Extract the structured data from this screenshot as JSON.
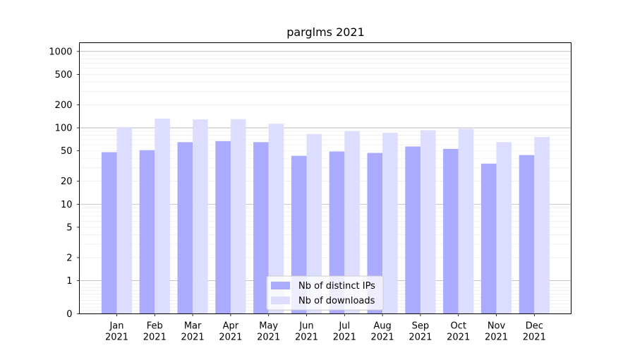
{
  "chart_data": {
    "type": "bar",
    "title": "parglms 2021",
    "xlabel": "",
    "ylabel": "",
    "y_scale": "symlog",
    "ylim": [
      0,
      1300
    ],
    "y_ticks": [
      0,
      1,
      2,
      5,
      10,
      20,
      50,
      100,
      200,
      500,
      1000
    ],
    "y_tick_labels": [
      "0",
      "1",
      "2",
      "5",
      "10",
      "20",
      "50",
      "100",
      "200",
      "500",
      "1000"
    ],
    "categories": [
      [
        "Jan",
        "2021"
      ],
      [
        "Feb",
        "2021"
      ],
      [
        "Mar",
        "2021"
      ],
      [
        "Apr",
        "2021"
      ],
      [
        "May",
        "2021"
      ],
      [
        "Jun",
        "2021"
      ],
      [
        "Jul",
        "2021"
      ],
      [
        "Aug",
        "2021"
      ],
      [
        "Sep",
        "2021"
      ],
      [
        "Oct",
        "2021"
      ],
      [
        "Nov",
        "2021"
      ],
      [
        "Dec",
        "2021"
      ]
    ],
    "series": [
      {
        "name": "Nb of distinct IPs",
        "color": "#aaaaff",
        "values": [
          48,
          51,
          65,
          67,
          65,
          43,
          49,
          47,
          57,
          53,
          34,
          44
        ]
      },
      {
        "name": "Nb of downloads",
        "color": "#ddddff",
        "values": [
          102,
          132,
          129,
          130,
          113,
          83,
          91,
          86,
          93,
          97,
          65,
          76
        ]
      }
    ],
    "grid": true,
    "legend_position": "lower-center"
  }
}
